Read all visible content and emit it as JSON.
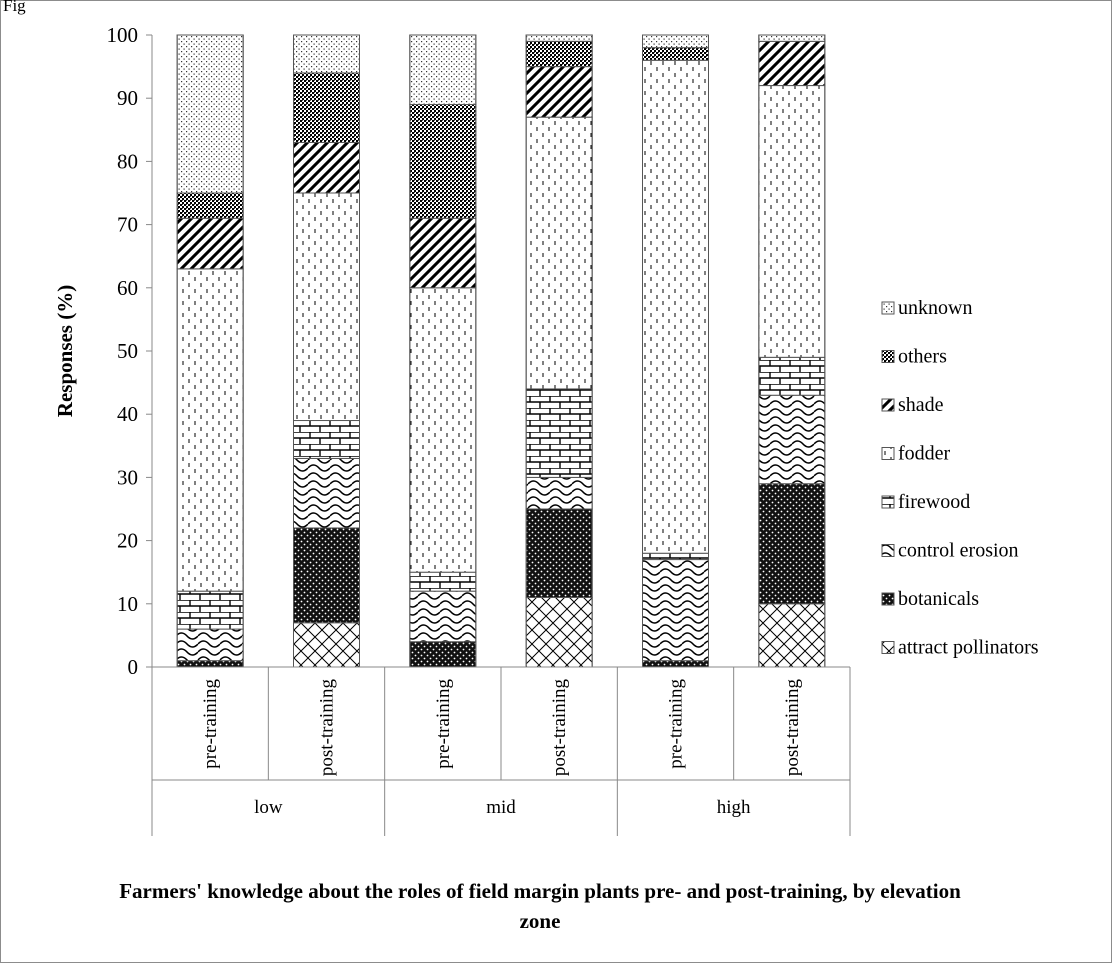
{
  "figure_label": "Fig",
  "chart_data": {
    "type": "bar",
    "stacked": true,
    "ylabel": "Responses (%)",
    "xlabel": "Farmers' knowledge about the roles of field margin plants pre- and post-training, by elevation zone",
    "ylim": [
      0,
      100
    ],
    "yticks": [
      "0",
      "10",
      "20",
      "30",
      "40",
      "50",
      "60",
      "70",
      "80",
      "90",
      "100"
    ],
    "groups": [
      "low",
      "mid",
      "high"
    ],
    "categories": [
      "pre-training",
      "post-training",
      "pre-training",
      "post-training",
      "pre-training",
      "post-training"
    ],
    "category_group": [
      0,
      0,
      1,
      1,
      2,
      2
    ],
    "legend_position": "right",
    "series": [
      {
        "name": "attract pollinators",
        "pattern": "crosshatch",
        "values": [
          0,
          7,
          0,
          11,
          0,
          10
        ]
      },
      {
        "name": "botanicals",
        "pattern": "dark-dots",
        "values": [
          1,
          15,
          4,
          14,
          1,
          19
        ]
      },
      {
        "name": "control erosion",
        "pattern": "waves",
        "values": [
          5,
          11,
          8,
          5,
          16,
          14
        ]
      },
      {
        "name": "firewood",
        "pattern": "bricks",
        "values": [
          6,
          6,
          3,
          14,
          1,
          6
        ]
      },
      {
        "name": "fodder",
        "pattern": "dashed-vertical",
        "values": [
          51,
          36,
          45,
          43,
          78,
          43
        ]
      },
      {
        "name": "shade",
        "pattern": "diagonal",
        "values": [
          8,
          8,
          11,
          8,
          0,
          7
        ]
      },
      {
        "name": "others",
        "pattern": "dense-dots",
        "values": [
          4,
          11,
          18,
          4,
          2,
          0
        ]
      },
      {
        "name": "unknown",
        "pattern": "sparse-dots",
        "values": [
          25,
          6,
          11,
          1,
          2,
          1
        ]
      }
    ]
  }
}
